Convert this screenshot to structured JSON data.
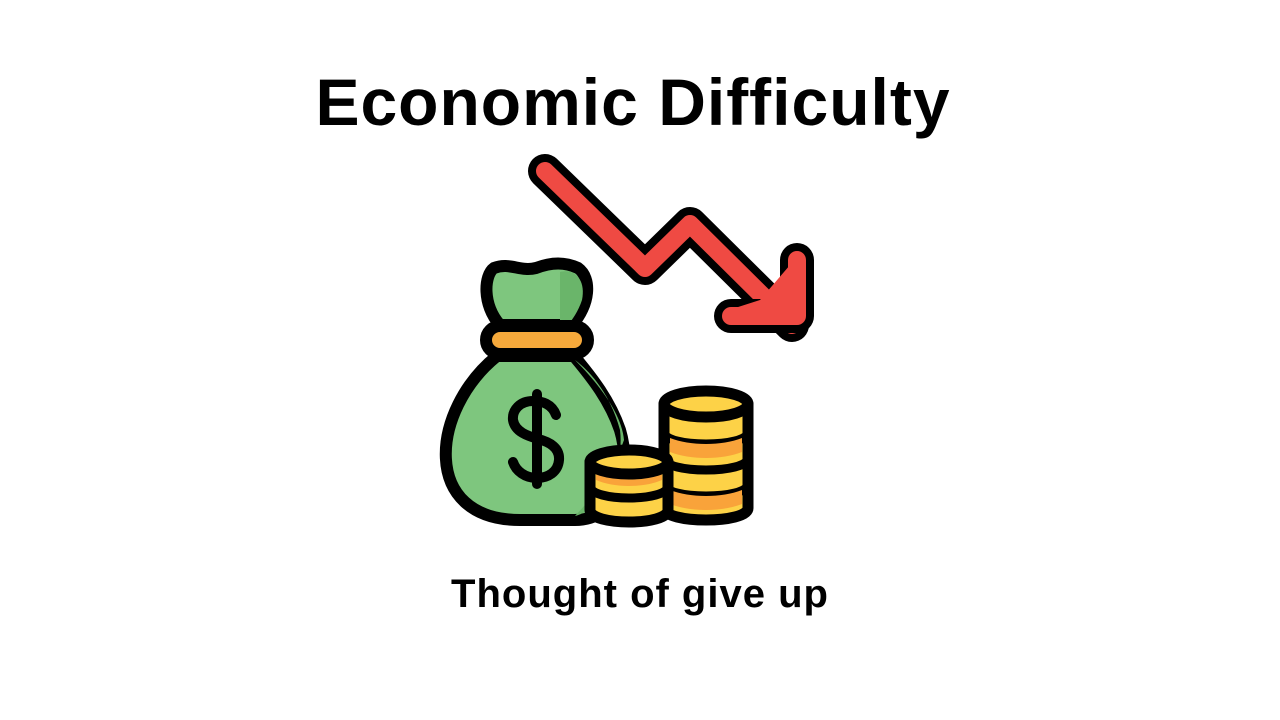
{
  "slide": {
    "title": "Economic Difficulty",
    "subtitle": "Thought of give up"
  },
  "illustration": {
    "icons": [
      "money-bag-icon",
      "dollar-sign-icon",
      "trend-down-arrow-icon",
      "coin-stack-icon"
    ],
    "colors": {
      "outline": "#000000",
      "bag_green": "#7ec67e",
      "bag_green_shade": "#6ab56a",
      "bag_tie": "#f6a93b",
      "arrow_red": "#ef4a43",
      "arrow_red_light": "#f26b5b",
      "coin_gold": "#fdd247",
      "coin_orange": "#f9a33a"
    }
  }
}
